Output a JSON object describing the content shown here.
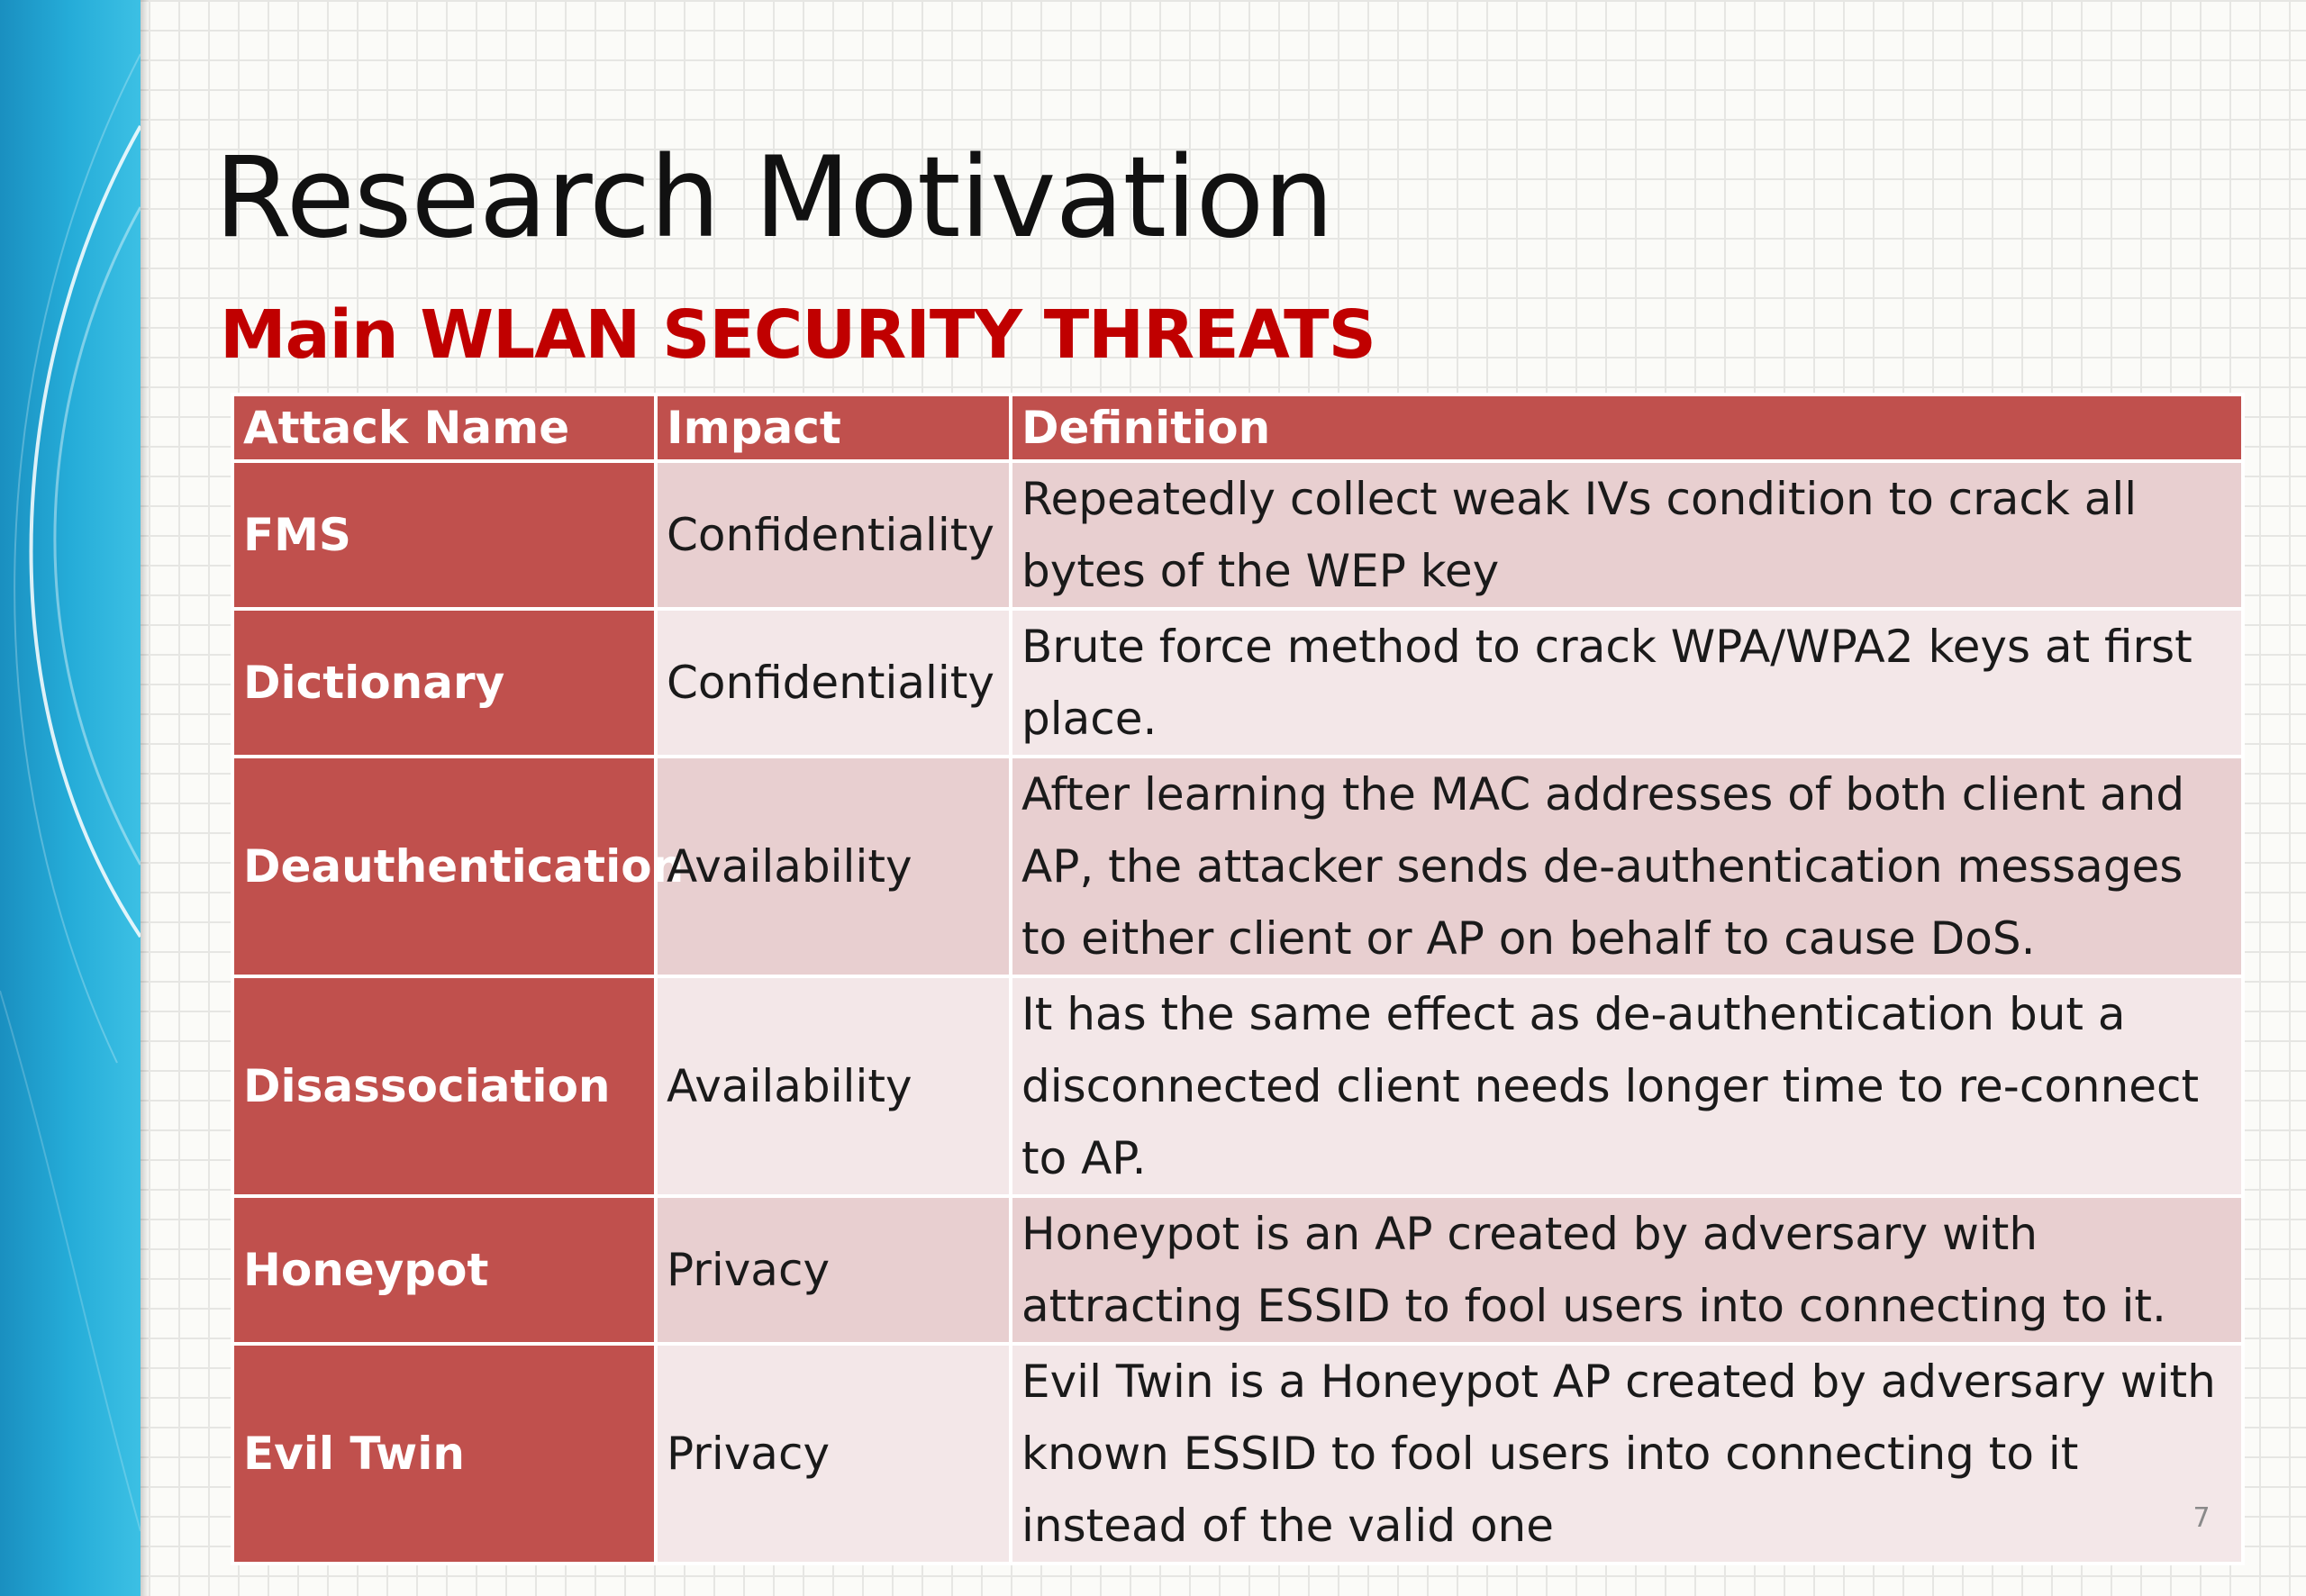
{
  "slide": {
    "title": "Research Motivation",
    "subtitle": "Main WLAN SECURITY THREATS",
    "page_number": "7"
  },
  "table": {
    "headers": {
      "attack_name": "Attack Name",
      "impact": "Impact",
      "definition": "Definition"
    },
    "rows": [
      {
        "attack_name": "FMS",
        "impact": "Confidentiality",
        "definition": "Repeatedly collect weak IVs condition to crack all bytes of the WEP key"
      },
      {
        "attack_name": "Dictionary",
        "impact": "Confidentiality",
        "definition": "Brute force method to crack WPA/WPA2 keys at first place."
      },
      {
        "attack_name": "Deauthentication",
        "impact": "Availability",
        "definition": "After learning the MAC addresses of both client and AP, the attacker sends de-authentication messages to either client or AP on behalf to cause DoS."
      },
      {
        "attack_name": "Disassociation",
        "impact": "Availability",
        "definition": "It has the same effect as de-authentication but a disconnected client needs longer time to re-connect to AP."
      },
      {
        "attack_name": "Honeypot",
        "impact": "Privacy",
        "definition": "Honeypot is an AP created by adversary with attracting ESSID to fool users into connecting to it."
      },
      {
        "attack_name": "Evil Twin",
        "impact": "Privacy",
        "definition": "Evil Twin is a Honeypot AP created by adversary with known ESSID to fool users into connecting to it instead of the valid one"
      }
    ]
  },
  "colors": {
    "title_text": "#111111",
    "subtitle_red": "#c00000",
    "table_header_red": "#c0504d",
    "row_shade_dark": "#e8cfd0",
    "row_shade_light": "#f3e7e8",
    "side_band_blue": "#1aa0cf"
  }
}
